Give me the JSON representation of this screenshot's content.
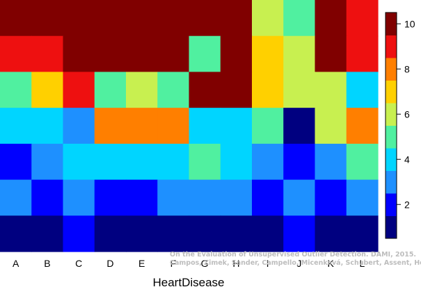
{
  "chart_data": {
    "type": "heatmap",
    "x_categories": [
      "A",
      "B",
      "C",
      "D",
      "E",
      "F",
      "G",
      "H",
      "I",
      "J",
      "K",
      "L"
    ],
    "xlabel": "HeartDisease",
    "ylabel": "",
    "rows_top_to_bottom": [
      [
        10,
        10,
        10,
        10,
        10,
        10,
        10,
        10,
        6,
        5,
        10,
        9
      ],
      [
        9,
        9,
        10,
        10,
        10,
        10,
        5,
        10,
        7,
        6,
        10,
        9
      ],
      [
        5,
        7,
        9,
        5,
        6,
        5,
        10,
        10,
        7,
        6,
        6,
        4
      ],
      [
        4,
        4,
        3,
        8,
        8,
        8,
        4,
        4,
        5,
        1,
        6,
        8
      ],
      [
        2,
        3,
        4,
        4,
        4,
        4,
        5,
        4,
        3,
        2,
        3,
        5
      ],
      [
        3,
        2,
        3,
        2,
        2,
        3,
        3,
        3,
        2,
        3,
        2,
        3
      ],
      [
        1,
        1,
        2,
        1,
        1,
        1,
        1,
        1,
        1,
        2,
        1,
        1
      ]
    ],
    "colorbar": {
      "min": 0.5,
      "max": 10.5,
      "ticks": [
        2,
        4,
        6,
        8,
        10
      ],
      "colors": [
        "#000080",
        "#0000ff",
        "#1e90ff",
        "#00d5ff",
        "#50f0a0",
        "#c8f050",
        "#ffd000",
        "#ff7f00",
        "#ee1010",
        "#800000"
      ]
    }
  },
  "caption": {
    "line1": "On the Evaluation of Unsupervised Outlier Detection. DAMI, 2015.",
    "line2": "Campos, Zimek, Sander, Campello, Micenková, Schubert, Assent, Houle"
  }
}
